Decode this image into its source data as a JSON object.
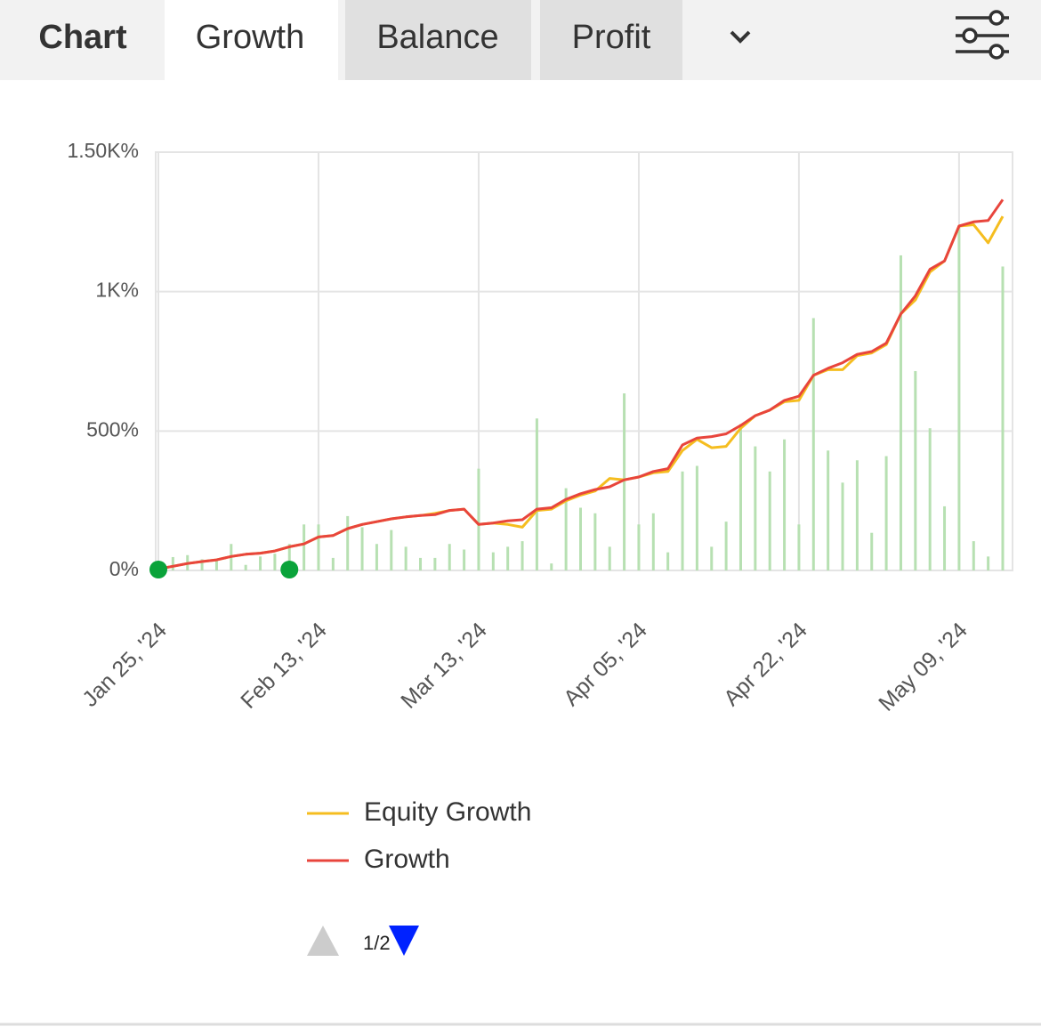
{
  "tabs": [
    "Chart",
    "Growth",
    "Balance",
    "Profit"
  ],
  "pager": "1/2",
  "chart_data": {
    "type": "line",
    "categories": [
      "Jan 25, '24",
      null,
      null,
      null,
      null,
      null,
      null,
      null,
      null,
      null,
      null,
      "Feb 13, '24",
      null,
      null,
      null,
      null,
      null,
      null,
      null,
      null,
      null,
      null,
      "Mar 13, '24",
      null,
      null,
      null,
      null,
      null,
      null,
      null,
      null,
      null,
      null,
      "Apr 05, '24",
      null,
      null,
      null,
      null,
      null,
      null,
      null,
      null,
      null,
      null,
      "Apr 22, '24",
      null,
      null,
      null,
      null,
      null,
      null,
      null,
      null,
      null,
      null,
      "May 09, '24",
      null,
      null,
      null
    ],
    "series": [
      {
        "name": "Equity Growth",
        "color": "#f5bd1f",
        "values": [
          5,
          15,
          25,
          32,
          38,
          50,
          58,
          62,
          70,
          85,
          95,
          120,
          125,
          150,
          165,
          175,
          185,
          192,
          197,
          205,
          215,
          220,
          165,
          170,
          165,
          155,
          215,
          220,
          250,
          270,
          285,
          330,
          325,
          335,
          350,
          355,
          430,
          470,
          440,
          445,
          510,
          555,
          575,
          605,
          610,
          700,
          720,
          720,
          770,
          780,
          810,
          920,
          970,
          1070,
          1110,
          1235,
          1240,
          1175,
          1270
        ]
      },
      {
        "name": "Growth",
        "color": "#e8453c",
        "values": [
          5,
          15,
          25,
          32,
          38,
          50,
          58,
          62,
          70,
          85,
          95,
          120,
          125,
          150,
          165,
          175,
          185,
          192,
          197,
          200,
          215,
          220,
          165,
          170,
          178,
          182,
          220,
          225,
          255,
          275,
          290,
          300,
          325,
          335,
          355,
          365,
          450,
          475,
          480,
          490,
          520,
          555,
          575,
          610,
          625,
          700,
          725,
          745,
          775,
          785,
          815,
          920,
          985,
          1080,
          1110,
          1235,
          1250,
          1255,
          1330
        ]
      },
      {
        "type": "bar",
        "color": "#b7e0b2",
        "values": [
          10,
          48,
          55,
          40,
          40,
          95,
          20,
          50,
          60,
          95,
          165,
          165,
          45,
          195,
          155,
          95,
          145,
          85,
          45,
          45,
          95,
          75,
          365,
          65,
          85,
          105,
          545,
          25,
          295,
          225,
          205,
          85,
          635,
          165,
          205,
          65,
          355,
          375,
          85,
          175,
          525,
          445,
          355,
          470,
          165,
          905,
          430,
          315,
          395,
          135,
          410,
          1130,
          715,
          510,
          230,
          1230,
          105,
          50,
          1090
        ]
      }
    ],
    "markers": {
      "color": "#0aa33a",
      "indices": [
        0,
        9
      ]
    },
    "ylim": [
      0,
      1500
    ],
    "yticks": [
      {
        "value": 0,
        "label": "0%"
      },
      {
        "value": 500,
        "label": "500%"
      },
      {
        "value": 1000,
        "label": "1K%"
      },
      {
        "value": 1500,
        "label": "1.50K%"
      }
    ],
    "grid": true
  }
}
